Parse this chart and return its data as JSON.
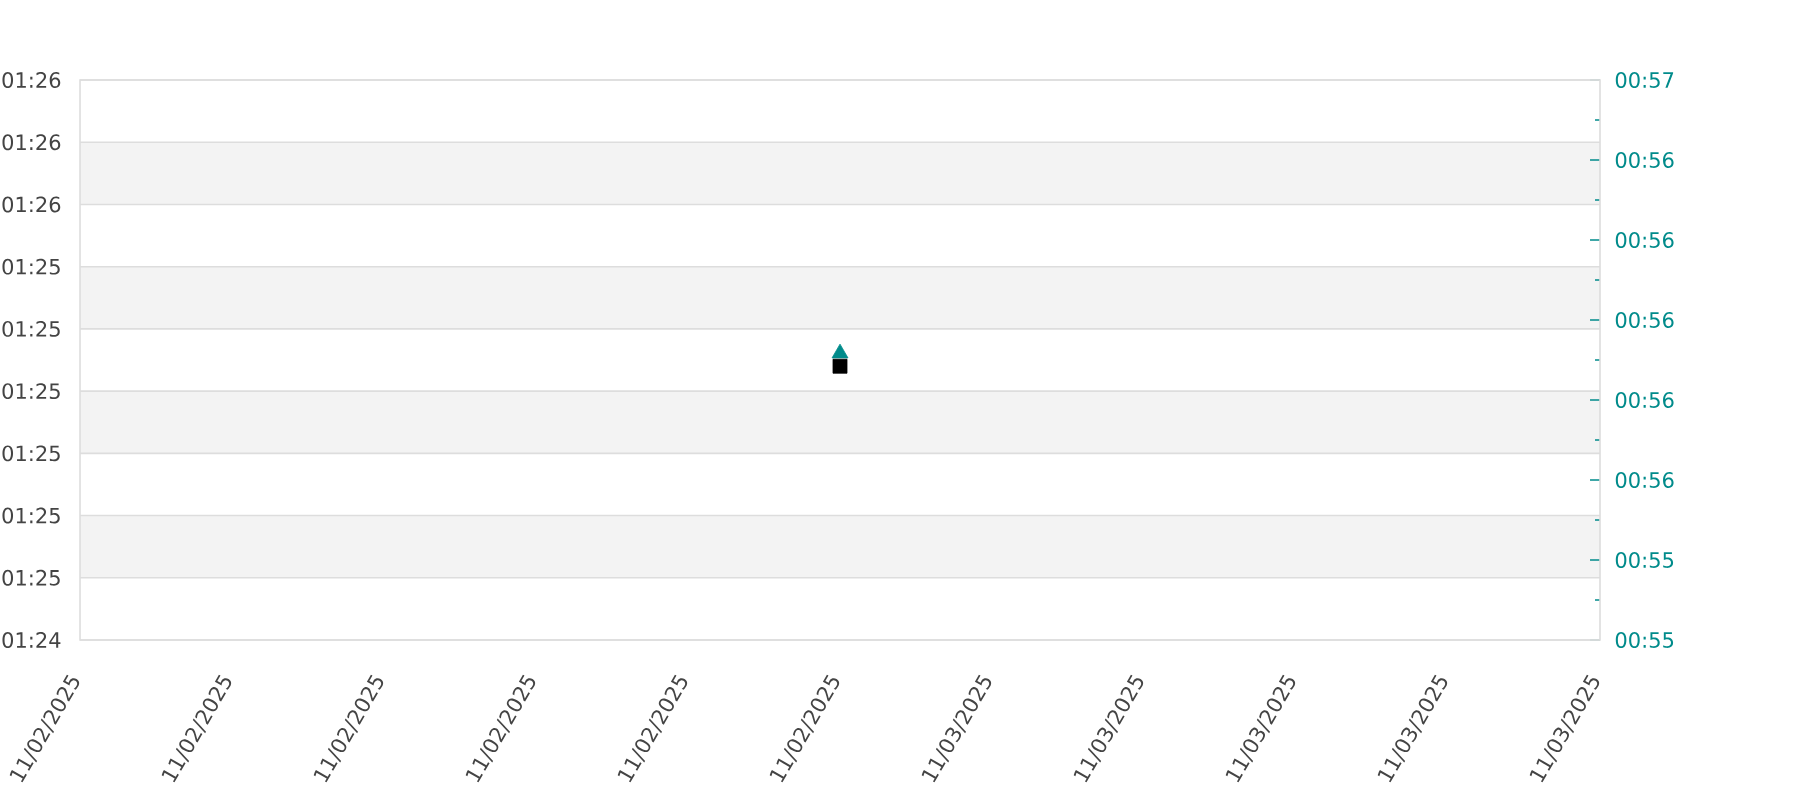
{
  "chart_data": {
    "type": "scatter",
    "x": [
      "2025-11-02T20:00"
    ],
    "series": [
      {
        "color": "#000000",
        "values": [
          5109
        ],
        "marker": "square"
      },
      {
        "color": "#008b8b",
        "values": [
          3355
        ],
        "marker": "triangle",
        "axis": "y2"
      }
    ],
    "xlim": [
      "2025-11-02T00:00",
      "2025-11-03T16:00"
    ],
    "xticks": [
      {
        "value": "2025-11-02T00:00",
        "label": "11/02/2025"
      },
      {
        "value": "2025-11-02T04:00",
        "label": "11/02/2025"
      },
      {
        "value": "2025-11-02T08:00",
        "label": "11/02/2025"
      },
      {
        "value": "2025-11-02T12:00",
        "label": "11/02/2025"
      },
      {
        "value": "2025-11-02T16:00",
        "label": "11/02/2025"
      },
      {
        "value": "2025-11-02T20:00",
        "label": "11/02/2025"
      },
      {
        "value": "2025-11-03T00:00",
        "label": "11/03/2025"
      },
      {
        "value": "2025-11-03T04:00",
        "label": "11/03/2025"
      },
      {
        "value": "2025-11-03T08:00",
        "label": "11/03/2025"
      },
      {
        "value": "2025-11-03T12:00",
        "label": "11/03/2025"
      },
      {
        "value": "2025-11-03T16:00",
        "label": "11/03/2025"
      }
    ],
    "ylim": [
      5065,
      5155
    ],
    "yticks": [
      {
        "value": 5065,
        "label": "01:24"
      },
      {
        "value": 5075,
        "label": "01:25"
      },
      {
        "value": 5085,
        "label": "01:25"
      },
      {
        "value": 5095,
        "label": "01:25"
      },
      {
        "value": 5105,
        "label": "01:25"
      },
      {
        "value": 5115,
        "label": "01:25"
      },
      {
        "value": 5125,
        "label": "01:25"
      },
      {
        "value": 5135,
        "label": "01:26"
      },
      {
        "value": 5145,
        "label": "01:26"
      },
      {
        "value": 5155,
        "label": "01:26"
      }
    ],
    "y2lim": [
      3312,
      3396
    ],
    "y2ticks": [
      {
        "value": 3312,
        "label": "00:55"
      },
      {
        "value": 3318,
        "label": null
      },
      {
        "value": 3324,
        "label": "00:55"
      },
      {
        "value": 3330,
        "label": null
      },
      {
        "value": 3336,
        "label": "00:56"
      },
      {
        "value": 3342,
        "label": null
      },
      {
        "value": 3348,
        "label": "00:56"
      },
      {
        "value": 3354,
        "label": null
      },
      {
        "value": 3360,
        "label": "00:56"
      },
      {
        "value": 3366,
        "label": null
      },
      {
        "value": 3372,
        "label": "00:56"
      },
      {
        "value": 3378,
        "label": null
      },
      {
        "value": 3384,
        "label": "00:56"
      },
      {
        "value": 3390,
        "label": null
      },
      {
        "value": 3396,
        "label": "00:57"
      }
    ],
    "grid": "y"
  }
}
